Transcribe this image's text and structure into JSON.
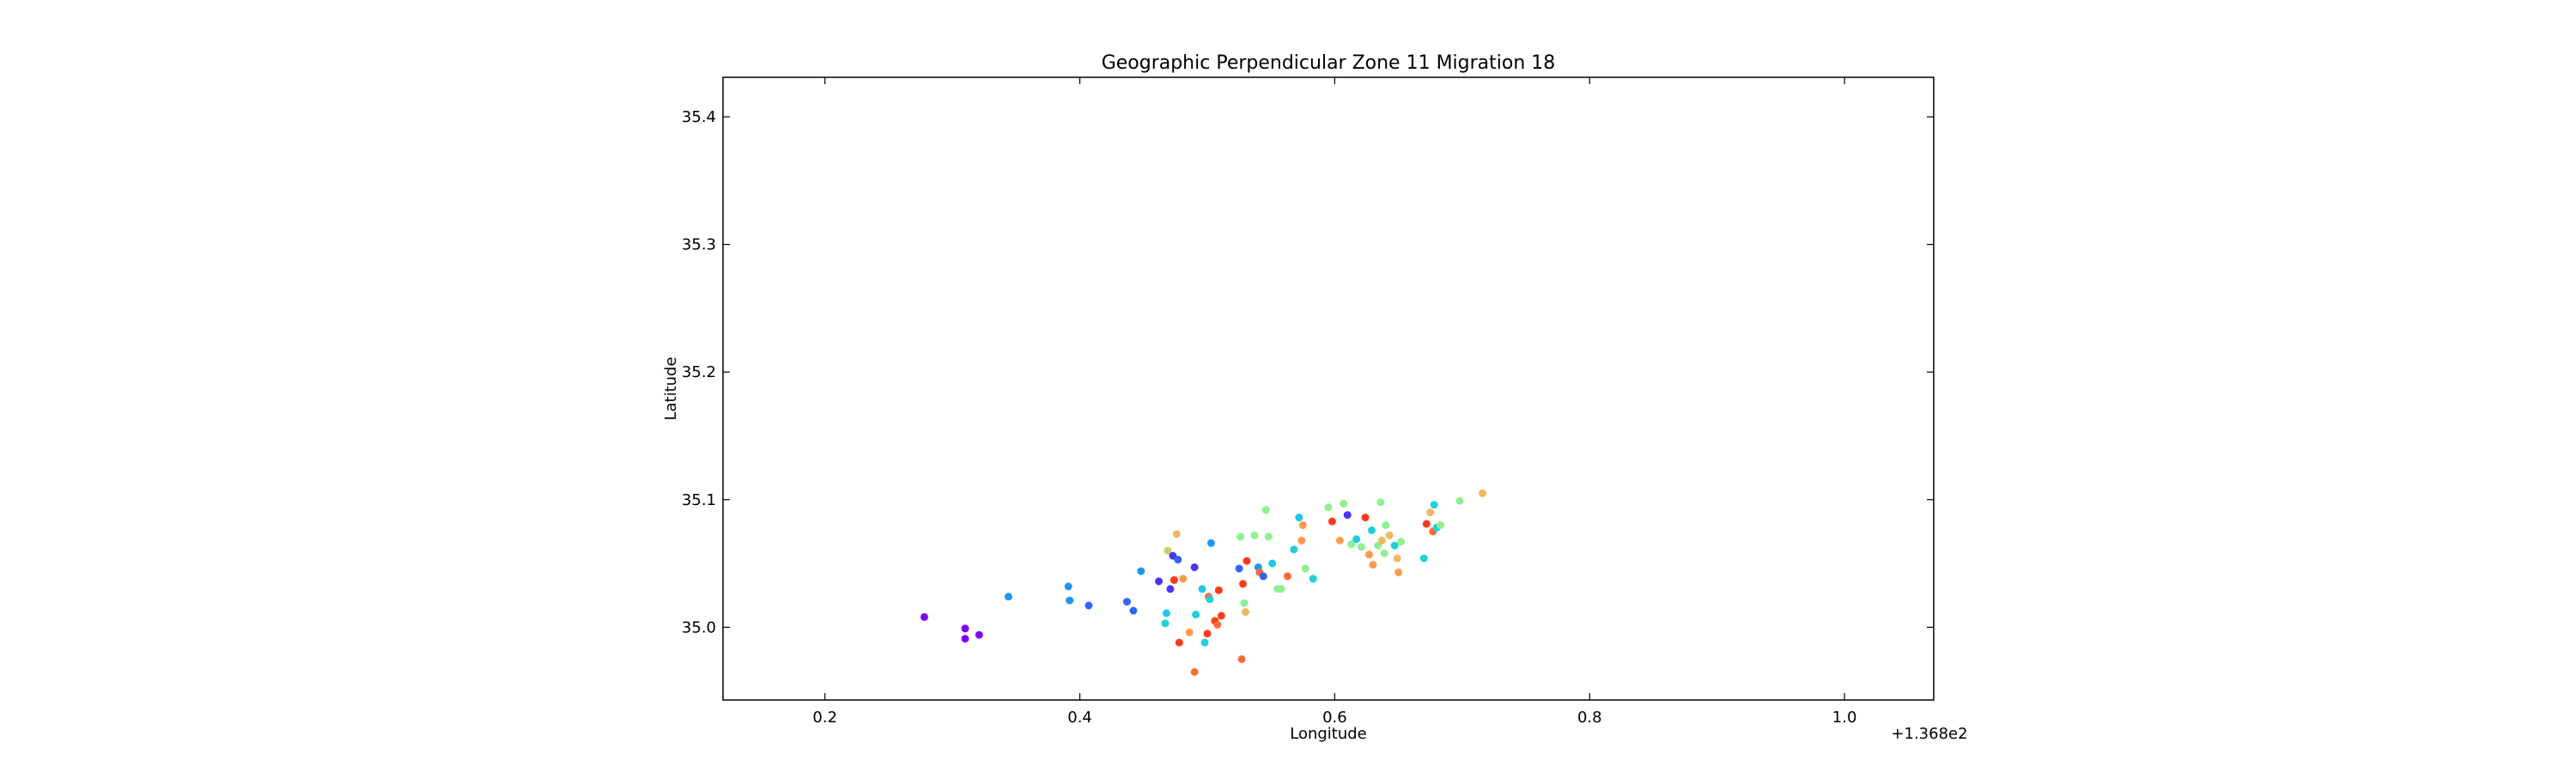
{
  "chart_data": {
    "type": "scatter",
    "title": "Geographic Perpendicular Zone 11 Migration 18",
    "xlabel": "Longitude",
    "ylabel": "Latitude",
    "x_offset_label": "+1.368e2",
    "xlim": [
      136.92,
      137.87
    ],
    "ylim": [
      34.943,
      35.431
    ],
    "xticks": [
      {
        "value": 137.0,
        "label": "0.2"
      },
      {
        "value": 137.2,
        "label": "0.4"
      },
      {
        "value": 137.4,
        "label": "0.6"
      },
      {
        "value": 137.6,
        "label": "0.8"
      },
      {
        "value": 137.8,
        "label": "1.0"
      }
    ],
    "yticks": [
      {
        "value": 35.0,
        "label": "35.0"
      },
      {
        "value": 35.1,
        "label": "35.1"
      },
      {
        "value": 35.2,
        "label": "35.2"
      },
      {
        "value": 35.3,
        "label": "35.3"
      },
      {
        "value": 35.4,
        "label": "35.4"
      }
    ],
    "grid": false,
    "legend": "none",
    "points": [
      {
        "x": 137.078,
        "y": 35.008,
        "color": "#7f00ff"
      },
      {
        "x": 137.11,
        "y": 34.999,
        "color": "#7f00ff"
      },
      {
        "x": 137.11,
        "y": 34.991,
        "color": "#7f00ff"
      },
      {
        "x": 137.121,
        "y": 34.994,
        "color": "#7f00ff"
      },
      {
        "x": 137.144,
        "y": 35.024,
        "color": "#1e96f5"
      },
      {
        "x": 137.191,
        "y": 35.032,
        "color": "#1e96f5"
      },
      {
        "x": 137.192,
        "y": 35.021,
        "color": "#1e96f5"
      },
      {
        "x": 137.207,
        "y": 35.017,
        "color": "#3264fa"
      },
      {
        "x": 137.237,
        "y": 35.02,
        "color": "#3264fa"
      },
      {
        "x": 137.242,
        "y": 35.013,
        "color": "#3264fa"
      },
      {
        "x": 137.248,
        "y": 35.044,
        "color": "#1e96f5"
      },
      {
        "x": 137.262,
        "y": 35.036,
        "color": "#4b32ff"
      },
      {
        "x": 137.269,
        "y": 35.06,
        "color": "#cccc66"
      },
      {
        "x": 137.271,
        "y": 35.03,
        "color": "#4b32ff"
      },
      {
        "x": 137.273,
        "y": 35.056,
        "color": "#4b32ff"
      },
      {
        "x": 137.276,
        "y": 35.073,
        "color": "#f0b860"
      },
      {
        "x": 137.277,
        "y": 35.053,
        "color": "#3264fa"
      },
      {
        "x": 137.274,
        "y": 35.037,
        "color": "#ff3a1a"
      },
      {
        "x": 137.281,
        "y": 35.038,
        "color": "#ff9a50"
      },
      {
        "x": 137.267,
        "y": 35.003,
        "color": "#1ed0d8"
      },
      {
        "x": 137.268,
        "y": 35.011,
        "color": "#1ec8e6"
      },
      {
        "x": 137.278,
        "y": 34.988,
        "color": "#ff3a1a"
      },
      {
        "x": 137.286,
        "y": 34.996,
        "color": "#ff9a50"
      },
      {
        "x": 137.29,
        "y": 35.047,
        "color": "#4b32ff"
      },
      {
        "x": 137.291,
        "y": 35.01,
        "color": "#1ed0d8"
      },
      {
        "x": 137.296,
        "y": 35.03,
        "color": "#1ec8e6"
      },
      {
        "x": 137.298,
        "y": 34.988,
        "color": "#1ed0d8"
      },
      {
        "x": 137.3,
        "y": 34.995,
        "color": "#ff3a1a"
      },
      {
        "x": 137.301,
        "y": 35.024,
        "color": "#ff6a3a"
      },
      {
        "x": 137.302,
        "y": 35.022,
        "color": "#1ed0d8"
      },
      {
        "x": 137.303,
        "y": 35.066,
        "color": "#1e96f5"
      },
      {
        "x": 137.306,
        "y": 35.005,
        "color": "#ff3a1a"
      },
      {
        "x": 137.308,
        "y": 35.002,
        "color": "#ff6a3a"
      },
      {
        "x": 137.309,
        "y": 35.029,
        "color": "#ff3a1a"
      },
      {
        "x": 137.311,
        "y": 35.009,
        "color": "#ff3a1a"
      },
      {
        "x": 137.29,
        "y": 34.965,
        "color": "#ff6a3a"
      },
      {
        "x": 137.325,
        "y": 35.046,
        "color": "#3264fa"
      },
      {
        "x": 137.326,
        "y": 35.071,
        "color": "#90f090"
      },
      {
        "x": 137.327,
        "y": 34.975,
        "color": "#ff6a3a"
      },
      {
        "x": 137.328,
        "y": 35.034,
        "color": "#ff3a1a"
      },
      {
        "x": 137.329,
        "y": 35.019,
        "color": "#90f090"
      },
      {
        "x": 137.33,
        "y": 35.012,
        "color": "#f0b860"
      },
      {
        "x": 137.331,
        "y": 35.052,
        "color": "#ff3a1a"
      },
      {
        "x": 137.337,
        "y": 35.072,
        "color": "#90f090"
      },
      {
        "x": 137.34,
        "y": 35.047,
        "color": "#1e96f5"
      },
      {
        "x": 137.341,
        "y": 35.043,
        "color": "#ff6a3a"
      },
      {
        "x": 137.344,
        "y": 35.04,
        "color": "#3264fa"
      },
      {
        "x": 137.346,
        "y": 35.092,
        "color": "#90f090"
      },
      {
        "x": 137.348,
        "y": 35.071,
        "color": "#90f090"
      },
      {
        "x": 137.351,
        "y": 35.05,
        "color": "#1ec8e6"
      },
      {
        "x": 137.355,
        "y": 35.03,
        "color": "#90f090"
      },
      {
        "x": 137.358,
        "y": 35.03,
        "color": "#90f090"
      },
      {
        "x": 137.363,
        "y": 35.04,
        "color": "#ff6a3a"
      },
      {
        "x": 137.368,
        "y": 35.061,
        "color": "#1ed0d8"
      },
      {
        "x": 137.372,
        "y": 35.086,
        "color": "#1ec8e6"
      },
      {
        "x": 137.374,
        "y": 35.068,
        "color": "#ff9a50"
      },
      {
        "x": 137.375,
        "y": 35.08,
        "color": "#ff9a50"
      },
      {
        "x": 137.377,
        "y": 35.046,
        "color": "#90f090"
      },
      {
        "x": 137.383,
        "y": 35.038,
        "color": "#1ed0d8"
      },
      {
        "x": 137.395,
        "y": 35.094,
        "color": "#90f090"
      },
      {
        "x": 137.398,
        "y": 35.083,
        "color": "#ff3a1a"
      },
      {
        "x": 137.404,
        "y": 35.068,
        "color": "#ff9a50"
      },
      {
        "x": 137.407,
        "y": 35.097,
        "color": "#90f090"
      },
      {
        "x": 137.41,
        "y": 35.088,
        "color": "#4b32ff"
      },
      {
        "x": 137.413,
        "y": 35.065,
        "color": "#90f090"
      },
      {
        "x": 137.417,
        "y": 35.069,
        "color": "#1ed0d8"
      },
      {
        "x": 137.421,
        "y": 35.063,
        "color": "#90f090"
      },
      {
        "x": 137.424,
        "y": 35.086,
        "color": "#ff3a1a"
      },
      {
        "x": 137.427,
        "y": 35.057,
        "color": "#ff9a50"
      },
      {
        "x": 137.429,
        "y": 35.076,
        "color": "#1ed0d8"
      },
      {
        "x": 137.43,
        "y": 35.049,
        "color": "#ff9a50"
      },
      {
        "x": 137.434,
        "y": 35.064,
        "color": "#90f090"
      },
      {
        "x": 137.436,
        "y": 35.098,
        "color": "#90f090"
      },
      {
        "x": 137.437,
        "y": 35.068,
        "color": "#f0b860"
      },
      {
        "x": 137.439,
        "y": 35.058,
        "color": "#90f090"
      },
      {
        "x": 137.44,
        "y": 35.08,
        "color": "#90f090"
      },
      {
        "x": 137.443,
        "y": 35.072,
        "color": "#f0b860"
      },
      {
        "x": 137.447,
        "y": 35.064,
        "color": "#1ed0d8"
      },
      {
        "x": 137.449,
        "y": 35.054,
        "color": "#f0b860"
      },
      {
        "x": 137.45,
        "y": 35.043,
        "color": "#ff9a50"
      },
      {
        "x": 137.452,
        "y": 35.067,
        "color": "#90f090"
      },
      {
        "x": 137.47,
        "y": 35.054,
        "color": "#1ed0d8"
      },
      {
        "x": 137.472,
        "y": 35.081,
        "color": "#ff3a1a"
      },
      {
        "x": 137.475,
        "y": 35.09,
        "color": "#f0b860"
      },
      {
        "x": 137.477,
        "y": 35.075,
        "color": "#ff6a3a"
      },
      {
        "x": 137.478,
        "y": 35.096,
        "color": "#1ed0d8"
      },
      {
        "x": 137.48,
        "y": 35.078,
        "color": "#1ed0d8"
      },
      {
        "x": 137.483,
        "y": 35.08,
        "color": "#90f090"
      },
      {
        "x": 137.498,
        "y": 35.099,
        "color": "#90f090"
      },
      {
        "x": 137.516,
        "y": 35.105,
        "color": "#f0b860"
      }
    ]
  }
}
